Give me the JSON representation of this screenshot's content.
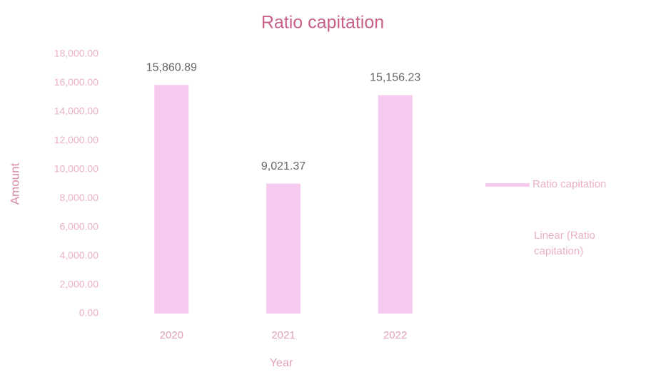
{
  "chart_data": {
    "type": "bar",
    "title": "Ratio capitation",
    "x_label": "Year",
    "y_label": "Amount",
    "categories": [
      "2020",
      "2021",
      "2022"
    ],
    "series": [
      {
        "name": "Ratio capitation",
        "color": "#f6c9ef",
        "values": [
          15860.89,
          9021.37,
          15156.23
        ],
        "value_labels": [
          "15,860.89",
          "9,021.37",
          "15,156.23"
        ]
      }
    ],
    "trendline_legend": "Linear (Ratio capitation)",
    "ylim": [
      0,
      18000
    ],
    "yticks": [
      {
        "value": 0,
        "label": "0.00"
      },
      {
        "value": 2000,
        "label": "2,000.00"
      },
      {
        "value": 4000,
        "label": "4,000.00"
      },
      {
        "value": 6000,
        "label": "6,000.00"
      },
      {
        "value": 8000,
        "label": "8,000.00"
      },
      {
        "value": 10000,
        "label": "10,000.00"
      },
      {
        "value": 12000,
        "label": "12,000.00"
      },
      {
        "value": 14000,
        "label": "14,000.00"
      },
      {
        "value": 16000,
        "label": "16,000.00"
      },
      {
        "value": 18000,
        "label": "18,000.00"
      }
    ],
    "grid": false,
    "legend": "right"
  }
}
